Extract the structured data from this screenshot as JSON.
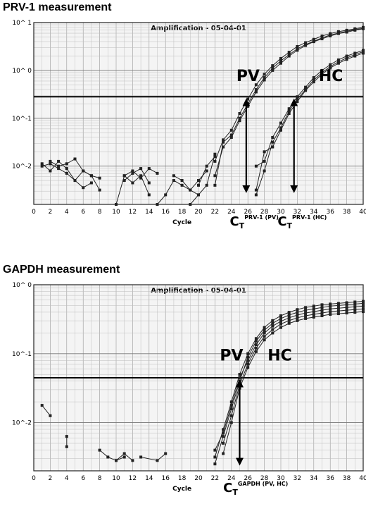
{
  "panels": [
    {
      "title": "PRV-1 measurement"
    },
    {
      "title": "GAPDH measurement"
    }
  ],
  "chart_data": [
    {
      "type": "line",
      "title": "Amplification   -   05-04-01",
      "xlabel": "Cycle",
      "ylabel": "",
      "xlim": [
        0,
        40
      ],
      "ylim_log10": [
        -2.8,
        1
      ],
      "y_scale": "log",
      "grid": true,
      "x_ticks": [
        "0",
        "2",
        "4",
        "6",
        "8",
        "10",
        "12",
        "14",
        "16",
        "18",
        "20",
        "22",
        "24",
        "26",
        "28",
        "30",
        "32",
        "34",
        "36",
        "38",
        "40"
      ],
      "y_ticks": [
        {
          "v": 1,
          "label": "10^ 1"
        },
        {
          "v": 0,
          "label": "10^ 0"
        },
        {
          "v": -1,
          "label": "10^-1"
        },
        {
          "v": -2,
          "label": "10^-2"
        }
      ],
      "threshold": -0.55,
      "group_labels": [
        {
          "text": "PV",
          "x": 24.6,
          "y": -0.22
        },
        {
          "text": "HC",
          "x": 34.6,
          "y": -0.22
        }
      ],
      "ct_markers": [
        {
          "x": 25.8,
          "y_from": -0.55,
          "y_to": -2.6,
          "main": "C",
          "sub": "T",
          "sup": "PRV-1 (PV)",
          "label_x": 23.8
        },
        {
          "x": 31.6,
          "y_from": -0.55,
          "y_to": -2.6,
          "main": "C",
          "sub": "T",
          "sup": "PRV-1 (HC)",
          "label_x": 29.6
        }
      ],
      "series": [
        {
          "x": [
            22,
            23,
            24,
            25,
            26,
            27,
            28,
            29,
            30,
            31,
            32,
            33,
            34,
            35,
            36,
            37,
            38,
            39,
            40
          ],
          "y": [
            -1.9,
            -1.45,
            -1.25,
            -0.9,
            -0.6,
            -0.3,
            -0.08,
            0.1,
            0.25,
            0.38,
            0.5,
            0.58,
            0.65,
            0.72,
            0.77,
            0.81,
            0.84,
            0.87,
            0.9
          ]
        },
        {
          "x": [
            22,
            23,
            24,
            25,
            26,
            27,
            28,
            29,
            30,
            31,
            32,
            33,
            34,
            35,
            36,
            37,
            38,
            39,
            40
          ],
          "y": [
            -2.4,
            -1.5,
            -1.35,
            -1.0,
            -0.7,
            -0.4,
            -0.15,
            0.05,
            0.2,
            0.33,
            0.45,
            0.54,
            0.61,
            0.68,
            0.74,
            0.78,
            0.82,
            0.85,
            0.88
          ]
        },
        {
          "x": [
            22,
            23,
            24,
            25,
            26,
            27,
            28,
            29,
            30,
            31,
            32,
            33,
            34,
            35,
            36,
            37,
            38,
            39,
            40
          ],
          "y": [
            -2.2,
            -1.6,
            -1.4,
            -1.05,
            -0.75,
            -0.45,
            -0.2,
            0.0,
            0.15,
            0.3,
            0.42,
            0.52,
            0.6,
            0.66,
            0.72,
            0.77,
            0.8,
            0.84,
            0.87
          ]
        },
        {
          "x": [
            27,
            28,
            29,
            30,
            31,
            32,
            33,
            34,
            35,
            36,
            37,
            38,
            39,
            40
          ],
          "y": [
            -2.0,
            -1.9,
            -1.4,
            -1.1,
            -0.8,
            -0.55,
            -0.35,
            -0.15,
            0.0,
            0.12,
            0.22,
            0.3,
            0.36,
            0.42
          ]
        },
        {
          "x": [
            27,
            28,
            29,
            30,
            31,
            32,
            33,
            34,
            35,
            36,
            37,
            38,
            39,
            40
          ],
          "y": [
            -2.6,
            -2.1,
            -1.5,
            -1.2,
            -0.85,
            -0.6,
            -0.4,
            -0.2,
            -0.05,
            0.08,
            0.18,
            0.26,
            0.33,
            0.39
          ]
        },
        {
          "x": [
            27,
            28,
            29,
            30,
            31,
            32,
            33,
            34,
            35,
            36,
            37,
            38,
            39,
            40
          ],
          "y": [
            -2.5,
            -1.7,
            -1.6,
            -1.25,
            -0.9,
            -0.65,
            -0.42,
            -0.24,
            -0.08,
            0.05,
            0.15,
            0.23,
            0.3,
            0.36
          ]
        },
        {
          "x": [
            1,
            2,
            3,
            4,
            5,
            6,
            7,
            8
          ],
          "y": [
            -1.95,
            -2.1,
            -1.9,
            -2.05,
            -2.3,
            -2.1,
            -2.2,
            -2.5
          ]
        },
        {
          "x": [
            1,
            2,
            3,
            4,
            5,
            6,
            7
          ],
          "y": [
            -2.0,
            -1.95,
            -2.05,
            -2.15,
            -2.3,
            -2.45,
            -2.35
          ]
        },
        {
          "x": [
            2,
            3,
            4,
            5,
            6,
            7,
            8
          ],
          "y": [
            -1.9,
            -2.0,
            -1.95,
            -1.85,
            -2.1,
            -2.2,
            -2.25
          ]
        },
        {
          "x": [
            11,
            12,
            13,
            14,
            15
          ],
          "y": [
            -2.2,
            -2.1,
            -2.25,
            -2.05,
            -2.15
          ]
        },
        {
          "x": [
            11,
            12,
            13,
            14
          ],
          "y": [
            -2.3,
            -2.15,
            -2.05,
            -2.35
          ]
        },
        {
          "x": [
            10,
            11,
            12,
            13,
            14
          ],
          "y": [
            -2.8,
            -2.2,
            -2.35,
            -2.2,
            -2.6
          ]
        },
        {
          "x": [
            15,
            16,
            17,
            18,
            19,
            20
          ],
          "y": [
            -2.8,
            -2.6,
            -2.3,
            -2.4,
            -2.5,
            -2.6
          ]
        },
        {
          "x": [
            17,
            18,
            19,
            20,
            21
          ],
          "y": [
            -2.2,
            -2.3,
            -2.5,
            -2.3,
            -2.1
          ]
        },
        {
          "x": [
            19,
            20,
            21,
            22
          ],
          "y": [
            -2.8,
            -2.6,
            -2.4,
            -1.75
          ]
        },
        {
          "x": [
            20,
            21,
            22
          ],
          "y": [
            -2.4,
            -2.0,
            -1.8
          ]
        }
      ]
    },
    {
      "type": "line",
      "title": "Amplification   -   05-04-01",
      "xlabel": "Cycle",
      "ylabel": "",
      "xlim": [
        0,
        40
      ],
      "ylim_log10": [
        -2.7,
        0
      ],
      "y_scale": "log",
      "grid": true,
      "x_ticks": [
        "0",
        "2",
        "4",
        "6",
        "8",
        "10",
        "12",
        "14",
        "16",
        "18",
        "20",
        "22",
        "24",
        "26",
        "28",
        "30",
        "32",
        "34",
        "36",
        "38",
        "40"
      ],
      "y_ticks": [
        {
          "v": 0,
          "label": "10^ 0"
        },
        {
          "v": -1,
          "label": "10^-1"
        },
        {
          "v": -2,
          "label": "10^-2"
        }
      ],
      "threshold": -1.35,
      "group_labels": [
        {
          "text": "PV",
          "x": 22.6,
          "y": -1.1
        },
        {
          "text": "HC",
          "x": 28.4,
          "y": -1.1
        }
      ],
      "ct_markers": [
        {
          "x": 25.0,
          "y_from": -1.35,
          "y_to": -2.65,
          "main": "C",
          "sub": "T",
          "sup": "GAPDH (PV, HC)",
          "label_x": 23.0
        }
      ],
      "series": [
        {
          "x": [
            22,
            23,
            24,
            25,
            26,
            27,
            28,
            29,
            30,
            31,
            32,
            33,
            34,
            35,
            36,
            37,
            38,
            39,
            40
          ],
          "y": [
            -2.5,
            -2.1,
            -1.7,
            -1.3,
            -1.0,
            -0.78,
            -0.62,
            -0.52,
            -0.45,
            -0.4,
            -0.36,
            -0.33,
            -0.31,
            -0.29,
            -0.28,
            -0.27,
            -0.26,
            -0.25,
            -0.24
          ]
        },
        {
          "x": [
            22,
            23,
            24,
            25,
            26,
            27,
            28,
            29,
            30,
            31,
            32,
            33,
            34,
            35,
            36,
            37,
            38,
            39,
            40
          ],
          "y": [
            -2.6,
            -2.2,
            -1.8,
            -1.4,
            -1.05,
            -0.82,
            -0.66,
            -0.56,
            -0.49,
            -0.44,
            -0.4,
            -0.37,
            -0.35,
            -0.33,
            -0.31,
            -0.3,
            -0.29,
            -0.28,
            -0.27
          ]
        },
        {
          "x": [
            22,
            23,
            24,
            25,
            26,
            27,
            28,
            29,
            30,
            31,
            32,
            33,
            34,
            35,
            36,
            37,
            38,
            39,
            40
          ],
          "y": [
            -2.4,
            -2.15,
            -1.75,
            -1.35,
            -1.1,
            -0.87,
            -0.7,
            -0.6,
            -0.53,
            -0.48,
            -0.44,
            -0.41,
            -0.39,
            -0.37,
            -0.35,
            -0.34,
            -0.33,
            -0.32,
            -0.31
          ]
        },
        {
          "x": [
            23,
            24,
            25,
            26,
            27,
            28,
            29,
            30,
            31,
            32,
            33,
            34,
            35,
            36,
            37,
            38,
            39,
            40
          ],
          "y": [
            -2.3,
            -1.9,
            -1.45,
            -1.15,
            -0.92,
            -0.75,
            -0.65,
            -0.57,
            -0.52,
            -0.48,
            -0.45,
            -0.43,
            -0.41,
            -0.39,
            -0.38,
            -0.37,
            -0.36,
            -0.35
          ]
        },
        {
          "x": [
            23,
            24,
            25,
            26,
            27,
            28,
            29,
            30,
            31,
            32,
            33,
            34,
            35,
            36,
            37,
            38,
            39,
            40
          ],
          "y": [
            -2.45,
            -2.0,
            -1.5,
            -1.2,
            -0.97,
            -0.8,
            -0.7,
            -0.62,
            -0.56,
            -0.52,
            -0.49,
            -0.47,
            -0.45,
            -0.43,
            -0.42,
            -0.41,
            -0.4,
            -0.39
          ]
        },
        {
          "x": [
            1,
            2
          ],
          "y": [
            -1.75,
            -1.9
          ]
        },
        {
          "x": [
            4,
            4
          ],
          "y": [
            -2.2,
            -2.35
          ]
        },
        {
          "x": [
            8,
            9,
            10,
            11
          ],
          "y": [
            -2.4,
            -2.5,
            -2.55,
            -2.5
          ]
        },
        {
          "x": [
            10,
            11,
            12
          ],
          "y": [
            -2.55,
            -2.45,
            -2.55
          ]
        },
        {
          "x": [
            13,
            15,
            16
          ],
          "y": [
            -2.5,
            -2.55,
            -2.45
          ]
        }
      ]
    }
  ]
}
